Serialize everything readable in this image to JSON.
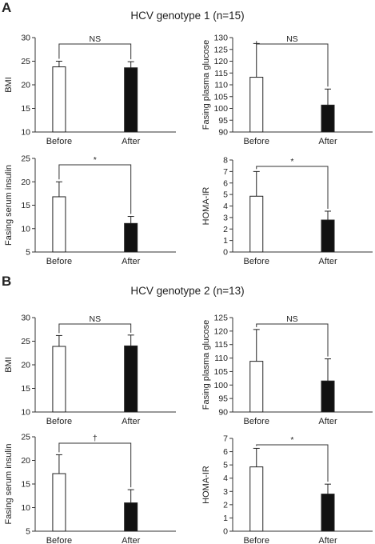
{
  "figure": {
    "panels": [
      {
        "letter": "A",
        "title": "HCV genotype 1 (n=15)"
      },
      {
        "letter": "B",
        "title": "HCV genotype 2 (n=13)"
      }
    ]
  },
  "chart_data": [
    {
      "type": "bar",
      "panel": "A",
      "categories": [
        "Before",
        "After"
      ],
      "ylabel": "BMI",
      "ylim": [
        10,
        30
      ],
      "yticks": [
        10,
        15,
        20,
        25,
        30
      ],
      "values": [
        23.8,
        23.6
      ],
      "errors": [
        1.2,
        1.3
      ],
      "fill": [
        "#ffffff",
        "#111111"
      ],
      "significance": "NS"
    },
    {
      "type": "bar",
      "panel": "A",
      "categories": [
        "Before",
        "After"
      ],
      "ylabel": "Fasing plasma glucose",
      "ylim": [
        90,
        130
      ],
      "yticks": [
        90,
        95,
        100,
        105,
        110,
        115,
        120,
        125,
        130
      ],
      "values": [
        113.2,
        101.4
      ],
      "errors": [
        14.3,
        6.8
      ],
      "fill": [
        "#ffffff",
        "#111111"
      ],
      "significance": "NS"
    },
    {
      "type": "bar",
      "panel": "A",
      "categories": [
        "Before",
        "After"
      ],
      "ylabel": "Fasing serum insulin",
      "ylim": [
        5,
        25
      ],
      "yticks": [
        5,
        10,
        15,
        20,
        25
      ],
      "values": [
        16.8,
        11.1
      ],
      "errors": [
        3.2,
        1.5
      ],
      "fill": [
        "#ffffff",
        "#111111"
      ],
      "significance": "*"
    },
    {
      "type": "bar",
      "panel": "A",
      "categories": [
        "Before",
        "After"
      ],
      "ylabel": "HOMA-IR",
      "ylim": [
        0,
        8
      ],
      "yticks": [
        0,
        1,
        2,
        3,
        4,
        5,
        6,
        7,
        8
      ],
      "values": [
        4.85,
        2.78
      ],
      "errors": [
        2.15,
        0.77
      ],
      "fill": [
        "#ffffff",
        "#111111"
      ],
      "significance": "*"
    },
    {
      "type": "bar",
      "panel": "B",
      "categories": [
        "Before",
        "After"
      ],
      "ylabel": "BMI",
      "ylim": [
        10,
        30
      ],
      "yticks": [
        10,
        15,
        20,
        25,
        30
      ],
      "values": [
        23.9,
        24.0
      ],
      "errors": [
        2.3,
        2.3
      ],
      "fill": [
        "#ffffff",
        "#111111"
      ],
      "significance": "NS"
    },
    {
      "type": "bar",
      "panel": "B",
      "categories": [
        "Before",
        "After"
      ],
      "ylabel": "Fasing plasma glucose",
      "ylim": [
        90,
        125
      ],
      "yticks": [
        90,
        95,
        100,
        105,
        110,
        115,
        120,
        125
      ],
      "values": [
        108.8,
        101.5
      ],
      "errors": [
        11.8,
        8.2
      ],
      "fill": [
        "#ffffff",
        "#111111"
      ],
      "significance": "NS"
    },
    {
      "type": "bar",
      "panel": "B",
      "categories": [
        "Before",
        "After"
      ],
      "ylabel": "Fasing serum insulin",
      "ylim": [
        5,
        25
      ],
      "yticks": [
        5,
        10,
        15,
        20,
        25
      ],
      "values": [
        17.2,
        11.0
      ],
      "errors": [
        4.0,
        2.8
      ],
      "fill": [
        "#ffffff",
        "#111111"
      ],
      "significance": "†"
    },
    {
      "type": "bar",
      "panel": "B",
      "categories": [
        "Before",
        "After"
      ],
      "ylabel": "HOMA-IR",
      "ylim": [
        0,
        7
      ],
      "yticks": [
        0,
        1,
        2,
        3,
        4,
        5,
        6,
        7
      ],
      "values": [
        4.85,
        2.8
      ],
      "errors": [
        1.4,
        0.75
      ],
      "fill": [
        "#ffffff",
        "#111111"
      ],
      "significance": "*"
    }
  ]
}
